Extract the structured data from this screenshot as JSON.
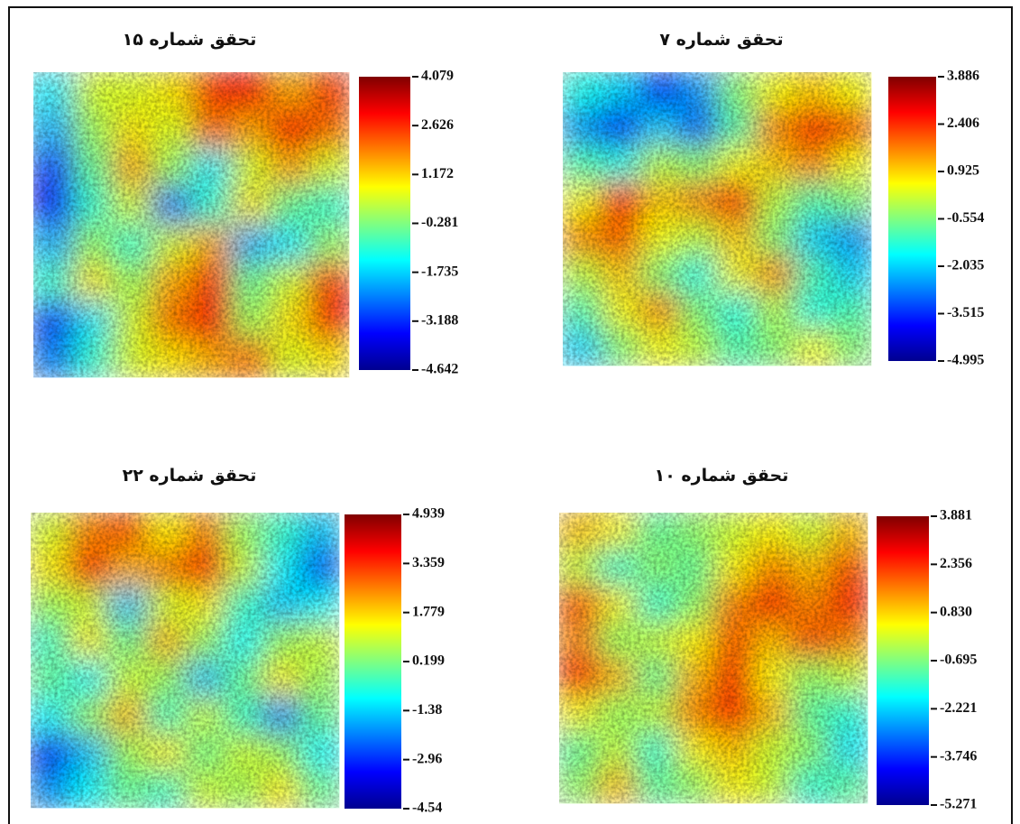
{
  "chart_data": [
    {
      "type": "heatmap",
      "title": "تحقق شماره ۱۵",
      "zlim": [
        -4.642,
        4.079
      ],
      "zticks": [
        4.079,
        2.626,
        1.172,
        -0.281,
        -1.735,
        -3.188,
        -4.642
      ],
      "z": [
        [
          -1.5,
          0.5,
          0.5,
          1.0,
          2.5,
          3.0,
          1.5,
          2.5
        ],
        [
          -2.0,
          0.0,
          1.0,
          0.5,
          2.0,
          1.5,
          3.0,
          2.0
        ],
        [
          -3.0,
          -0.5,
          1.5,
          0.0,
          -1.5,
          0.5,
          1.5,
          0.5
        ],
        [
          -3.5,
          -1.0,
          0.5,
          -2.5,
          -1.0,
          1.0,
          -0.5,
          -1.0
        ],
        [
          -2.0,
          0.0,
          -1.0,
          0.5,
          1.5,
          -2.0,
          -1.5,
          0.0
        ],
        [
          -1.0,
          1.0,
          0.0,
          1.5,
          2.5,
          -0.5,
          0.5,
          2.5
        ],
        [
          -3.0,
          -1.5,
          0.5,
          2.0,
          3.0,
          0.0,
          1.0,
          3.0
        ],
        [
          -2.5,
          -1.0,
          0.5,
          1.0,
          1.5,
          2.0,
          0.5,
          1.0
        ]
      ]
    },
    {
      "type": "heatmap",
      "title": "تحقق شماره ۷",
      "zlim": [
        -4.995,
        3.886
      ],
      "zticks": [
        3.886,
        2.406,
        0.925,
        -0.554,
        -2.035,
        -3.515,
        -4.995
      ],
      "z": [
        [
          -1.5,
          -2.0,
          -3.5,
          -2.5,
          -0.5,
          0.5,
          1.0,
          0.5
        ],
        [
          -2.5,
          -3.5,
          -2.0,
          -3.0,
          -1.0,
          1.5,
          2.5,
          2.0
        ],
        [
          -1.0,
          -1.5,
          0.0,
          -0.5,
          0.5,
          1.0,
          1.5,
          0.5
        ],
        [
          0.5,
          2.5,
          1.0,
          1.5,
          2.5,
          0.0,
          -1.0,
          -0.5
        ],
        [
          1.5,
          2.0,
          0.5,
          0.0,
          1.0,
          -0.5,
          -2.0,
          -2.5
        ],
        [
          0.0,
          1.0,
          -0.5,
          -1.5,
          0.5,
          1.5,
          -1.0,
          -2.0
        ],
        [
          -1.0,
          0.5,
          1.5,
          -0.5,
          -1.5,
          0.0,
          -1.5,
          -1.0
        ],
        [
          -2.0,
          -0.5,
          0.5,
          0.0,
          -1.0,
          -0.5,
          0.5,
          -0.5
        ]
      ]
    },
    {
      "type": "heatmap",
      "title": "تحقق شماره ۲۲",
      "zlim": [
        -4.54,
        4.939
      ],
      "zticks": [
        4.939,
        3.359,
        1.779,
        0.199,
        -1.38,
        -2.96,
        -4.54
      ],
      "z": [
        [
          1.0,
          2.5,
          3.0,
          1.5,
          2.5,
          0.5,
          -0.5,
          -1.5
        ],
        [
          1.5,
          3.5,
          2.0,
          2.5,
          3.5,
          1.0,
          -1.0,
          -2.5
        ],
        [
          0.5,
          1.0,
          -1.5,
          1.0,
          1.5,
          -0.5,
          -1.5,
          -1.0
        ],
        [
          -0.5,
          1.5,
          0.0,
          2.0,
          0.5,
          -1.0,
          0.5,
          1.0
        ],
        [
          0.0,
          -1.0,
          1.0,
          0.5,
          -1.5,
          0.0,
          1.5,
          0.5
        ],
        [
          -1.0,
          0.5,
          2.0,
          -0.5,
          1.0,
          -0.5,
          -2.0,
          0.0
        ],
        [
          -3.0,
          -1.5,
          0.5,
          1.5,
          0.0,
          1.0,
          0.5,
          -1.0
        ],
        [
          -2.0,
          -1.0,
          0.0,
          -0.5,
          1.0,
          0.5,
          1.5,
          0.0
        ]
      ]
    },
    {
      "type": "heatmap",
      "title": "تحقق شماره ۱۰",
      "zlim": [
        -5.271,
        3.881
      ],
      "zticks": [
        3.881,
        2.356,
        {
          "value": 0.83,
          "label": "0.830"
        },
        -0.695,
        -2.221,
        -3.746,
        -5.271
      ],
      "z": [
        [
          1.0,
          0.5,
          -1.0,
          -0.5,
          0.0,
          0.5,
          0.0,
          1.0
        ],
        [
          0.0,
          -1.5,
          -0.5,
          -1.0,
          0.5,
          1.5,
          1.0,
          2.0
        ],
        [
          2.0,
          0.5,
          -1.5,
          -0.5,
          1.5,
          2.5,
          1.5,
          2.5
        ],
        [
          1.5,
          -0.5,
          0.0,
          0.5,
          2.0,
          1.0,
          2.0,
          1.5
        ],
        [
          2.5,
          1.0,
          -1.0,
          1.0,
          2.5,
          0.5,
          -0.5,
          0.0
        ],
        [
          0.5,
          -0.5,
          0.0,
          1.5,
          2.5,
          1.0,
          -1.0,
          -1.5
        ],
        [
          -1.0,
          0.0,
          -1.5,
          0.5,
          1.0,
          0.0,
          -0.5,
          -2.0
        ],
        [
          -0.5,
          1.0,
          -1.0,
          -0.5,
          0.5,
          0.0,
          -1.5,
          -1.0
        ]
      ]
    }
  ]
}
